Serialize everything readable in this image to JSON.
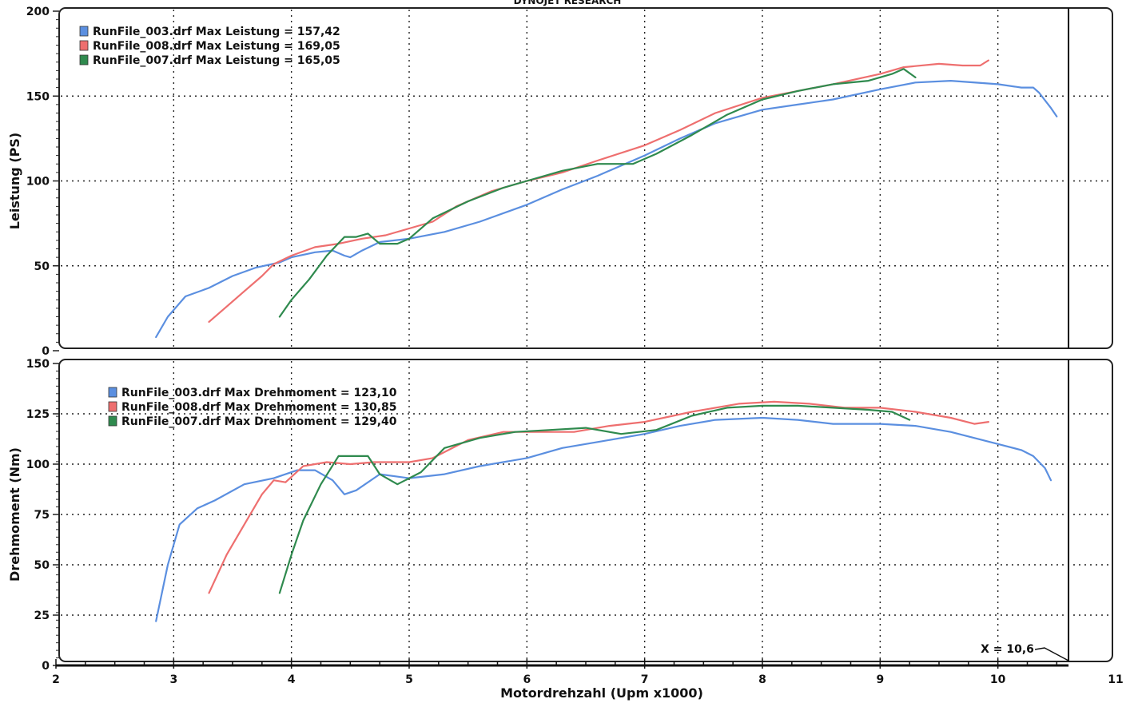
{
  "header": "DYNOJET RESEARCH",
  "colors": {
    "RunFile_003": "#5b8fe0",
    "RunFile_008": "#ee6f6f",
    "RunFile_007": "#2f8a4e",
    "grid": "#222222",
    "frame": "#222222"
  },
  "chart_data": [
    {
      "type": "line",
      "xlabel": "Motordrehzahl (Upm x1000)",
      "ylabel": "Leistung (PS)",
      "xlim": [
        2,
        11
      ],
      "ylim": [
        0,
        200
      ],
      "yticks": [
        0,
        50,
        100,
        150,
        200
      ],
      "grid": true,
      "legend_position": "top-left",
      "legend": [
        "RunFile_003.drf Max Leistung = 157,42",
        "RunFile_008.drf Max Leistung = 169,05",
        "RunFile_007.drf Max Leistung = 165,05"
      ],
      "series": [
        {
          "name": "RunFile_003.drf",
          "color_key": "RunFile_003",
          "points": [
            [
              2.85,
              8
            ],
            [
              2.95,
              20
            ],
            [
              3.1,
              32
            ],
            [
              3.3,
              37
            ],
            [
              3.5,
              44
            ],
            [
              3.7,
              49
            ],
            [
              3.9,
              52
            ],
            [
              4.0,
              55
            ],
            [
              4.2,
              58
            ],
            [
              4.35,
              59
            ],
            [
              4.45,
              56
            ],
            [
              4.5,
              55
            ],
            [
              4.6,
              59
            ],
            [
              4.75,
              64
            ],
            [
              5.0,
              66
            ],
            [
              5.3,
              70
            ],
            [
              5.6,
              76
            ],
            [
              6.0,
              86
            ],
            [
              6.3,
              95
            ],
            [
              6.6,
              103
            ],
            [
              7.0,
              115
            ],
            [
              7.3,
              125
            ],
            [
              7.6,
              134
            ],
            [
              8.0,
              142
            ],
            [
              8.3,
              145
            ],
            [
              8.6,
              148
            ],
            [
              9.0,
              154
            ],
            [
              9.3,
              158
            ],
            [
              9.6,
              159
            ],
            [
              10.0,
              157
            ],
            [
              10.2,
              155
            ],
            [
              10.3,
              155
            ],
            [
              10.35,
              152
            ],
            [
              10.45,
              143
            ],
            [
              10.5,
              138
            ]
          ]
        },
        {
          "name": "RunFile_008.drf",
          "color_key": "RunFile_008",
          "points": [
            [
              3.3,
              17
            ],
            [
              3.45,
              26
            ],
            [
              3.6,
              35
            ],
            [
              3.75,
              44
            ],
            [
              3.85,
              51
            ],
            [
              4.0,
              56
            ],
            [
              4.2,
              61
            ],
            [
              4.4,
              63
            ],
            [
              4.6,
              66
            ],
            [
              4.8,
              68
            ],
            [
              5.0,
              72
            ],
            [
              5.2,
              76
            ],
            [
              5.4,
              85
            ],
            [
              5.7,
              94
            ],
            [
              6.0,
              100
            ],
            [
              6.3,
              105
            ],
            [
              6.6,
              112
            ],
            [
              7.0,
              121
            ],
            [
              7.3,
              130
            ],
            [
              7.6,
              140
            ],
            [
              8.0,
              149
            ],
            [
              8.3,
              153
            ],
            [
              8.6,
              157
            ],
            [
              9.0,
              163
            ],
            [
              9.2,
              167
            ],
            [
              9.5,
              169
            ],
            [
              9.7,
              168
            ],
            [
              9.85,
              168
            ],
            [
              9.92,
              171
            ]
          ]
        },
        {
          "name": "RunFile_007.drf",
          "color_key": "RunFile_007",
          "points": [
            [
              3.9,
              20
            ],
            [
              4.0,
              30
            ],
            [
              4.15,
              42
            ],
            [
              4.3,
              56
            ],
            [
              4.45,
              67
            ],
            [
              4.55,
              67
            ],
            [
              4.65,
              69
            ],
            [
              4.75,
              63
            ],
            [
              4.9,
              63
            ],
            [
              5.0,
              66
            ],
            [
              5.2,
              78
            ],
            [
              5.5,
              88
            ],
            [
              5.8,
              96
            ],
            [
              6.0,
              100
            ],
            [
              6.3,
              106
            ],
            [
              6.6,
              110
            ],
            [
              6.9,
              110
            ],
            [
              7.1,
              116
            ],
            [
              7.4,
              127
            ],
            [
              7.7,
              139
            ],
            [
              8.0,
              148
            ],
            [
              8.3,
              153
            ],
            [
              8.6,
              157
            ],
            [
              8.9,
              159
            ],
            [
              9.1,
              163
            ],
            [
              9.2,
              166
            ],
            [
              9.3,
              161
            ]
          ]
        }
      ]
    },
    {
      "type": "line",
      "xlabel": "Motordrehzahl (Upm x1000)",
      "ylabel": "Drehmoment (Nm)",
      "xlim": [
        2,
        11
      ],
      "ylim": [
        0,
        150
      ],
      "yticks": [
        0,
        25,
        50,
        75,
        100,
        125,
        150
      ],
      "xticks": [
        2,
        3,
        4,
        5,
        6,
        7,
        8,
        9,
        10,
        11
      ],
      "grid": true,
      "legend_position": "top-left",
      "legend": [
        "RunFile_003.drf Max Drehmoment = 123,10",
        "RunFile_008.drf Max Drehmoment = 130,85",
        "RunFile_007.drf Max Drehmoment = 129,40"
      ],
      "annotation": {
        "text": "X = 10,6",
        "x": 10.6
      },
      "series": [
        {
          "name": "RunFile_003.drf",
          "color_key": "RunFile_003",
          "points": [
            [
              2.85,
              22
            ],
            [
              2.95,
              50
            ],
            [
              3.05,
              70
            ],
            [
              3.2,
              78
            ],
            [
              3.35,
              82
            ],
            [
              3.6,
              90
            ],
            [
              3.85,
              93
            ],
            [
              4.05,
              97
            ],
            [
              4.2,
              97
            ],
            [
              4.35,
              92
            ],
            [
              4.45,
              85
            ],
            [
              4.55,
              87
            ],
            [
              4.75,
              95
            ],
            [
              5.0,
              93
            ],
            [
              5.3,
              95
            ],
            [
              5.6,
              99
            ],
            [
              6.0,
              103
            ],
            [
              6.3,
              108
            ],
            [
              6.6,
              111
            ],
            [
              7.0,
              115
            ],
            [
              7.3,
              119
            ],
            [
              7.6,
              122
            ],
            [
              8.0,
              123
            ],
            [
              8.3,
              122
            ],
            [
              8.6,
              120
            ],
            [
              9.0,
              120
            ],
            [
              9.3,
              119
            ],
            [
              9.6,
              116
            ],
            [
              10.0,
              110
            ],
            [
              10.2,
              107
            ],
            [
              10.3,
              104
            ],
            [
              10.4,
              98
            ],
            [
              10.45,
              92
            ]
          ]
        },
        {
          "name": "RunFile_008.drf",
          "color_key": "RunFile_008",
          "points": [
            [
              3.3,
              36
            ],
            [
              3.45,
              55
            ],
            [
              3.6,
              70
            ],
            [
              3.75,
              85
            ],
            [
              3.85,
              92
            ],
            [
              3.95,
              91
            ],
            [
              4.1,
              99
            ],
            [
              4.3,
              101
            ],
            [
              4.5,
              100
            ],
            [
              4.7,
              101
            ],
            [
              5.0,
              101
            ],
            [
              5.2,
              103
            ],
            [
              5.5,
              112
            ],
            [
              5.8,
              116
            ],
            [
              6.1,
              116
            ],
            [
              6.4,
              116
            ],
            [
              6.7,
              119
            ],
            [
              7.0,
              121
            ],
            [
              7.4,
              126
            ],
            [
              7.8,
              130
            ],
            [
              8.1,
              131
            ],
            [
              8.4,
              130
            ],
            [
              8.7,
              128
            ],
            [
              9.0,
              128
            ],
            [
              9.3,
              126
            ],
            [
              9.6,
              123
            ],
            [
              9.8,
              120
            ],
            [
              9.92,
              121
            ]
          ]
        },
        {
          "name": "RunFile_007.drf",
          "color_key": "RunFile_007",
          "points": [
            [
              3.9,
              36
            ],
            [
              4.0,
              55
            ],
            [
              4.1,
              72
            ],
            [
              4.25,
              90
            ],
            [
              4.4,
              104
            ],
            [
              4.5,
              104
            ],
            [
              4.65,
              104
            ],
            [
              4.75,
              95
            ],
            [
              4.9,
              90
            ],
            [
              5.1,
              96
            ],
            [
              5.3,
              108
            ],
            [
              5.6,
              113
            ],
            [
              5.9,
              116
            ],
            [
              6.2,
              117
            ],
            [
              6.5,
              118
            ],
            [
              6.8,
              115
            ],
            [
              7.1,
              117
            ],
            [
              7.4,
              124
            ],
            [
              7.7,
              128
            ],
            [
              8.0,
              129
            ],
            [
              8.3,
              129
            ],
            [
              8.6,
              128
            ],
            [
              8.9,
              127
            ],
            [
              9.1,
              126
            ],
            [
              9.25,
              122
            ]
          ]
        }
      ]
    }
  ]
}
